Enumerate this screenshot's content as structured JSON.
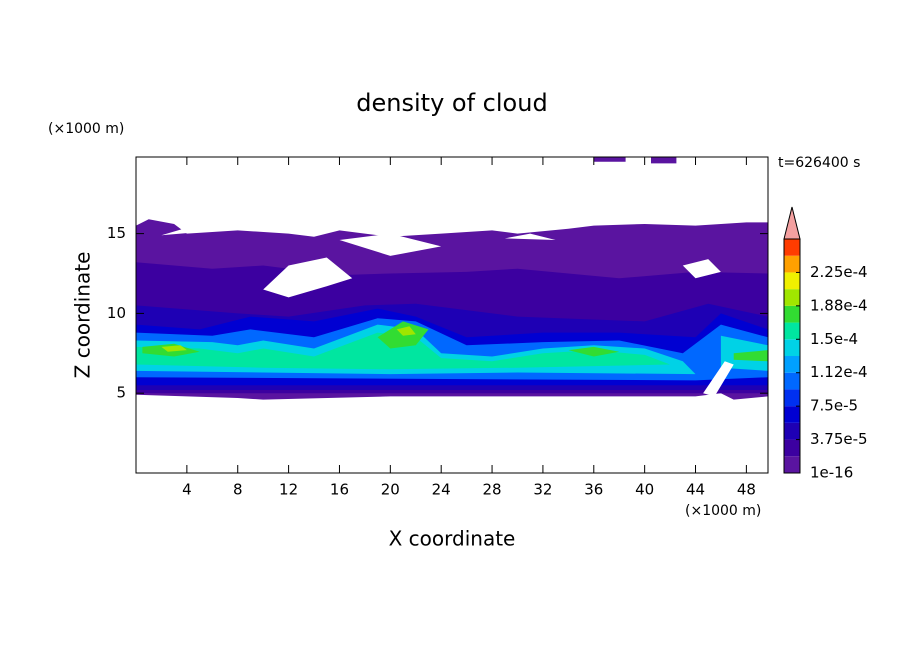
{
  "chart_data": {
    "type": "contour",
    "title": "density of cloud",
    "x_label": "X coordinate",
    "y_label": "Z coordinate",
    "x_unit": "(×1000 m)",
    "y_unit": "(×1000 m)",
    "time_label": "t=626400 s",
    "xlim": [
      0,
      49.7
    ],
    "ylim": [
      0,
      19.8
    ],
    "xticks": [
      4,
      8,
      12,
      16,
      20,
      24,
      28,
      32,
      36,
      40,
      44,
      48
    ],
    "yticks": [
      5,
      10,
      15
    ],
    "levels": [
      0,
      1.875e-05,
      3.75e-05,
      5.625e-05,
      7.5e-05,
      9.375e-05,
      0.0001125,
      0.00013125,
      0.00015,
      0.00016875,
      0.0001875,
      0.00020625,
      0.000225,
      0.00024375
    ],
    "colors": [
      "#5a14a0",
      "#3c00a0",
      "#1e00b4",
      "#0000d2",
      "#0030f0",
      "#0068ff",
      "#00a0ff",
      "#00d2e6",
      "#00e6a0",
      "#32dc32",
      "#a0e600",
      "#f0f000",
      "#ffa000",
      "#ff3c00"
    ],
    "clim": [
      0,
      0.0002625
    ],
    "over_color": "#f4a0a0",
    "colorbar_ticks": [
      {
        "value": 1e-16,
        "label": "1e-16"
      },
      {
        "value": 3.75e-05,
        "label": "3.75e-5"
      },
      {
        "value": 7.5e-05,
        "label": "7.5e-5"
      },
      {
        "value": 0.0001125,
        "label": "1.12e-4"
      },
      {
        "value": 0.00015,
        "label": "1.5e-4"
      },
      {
        "value": 0.0001875,
        "label": "1.88e-4"
      },
      {
        "value": 0.000225,
        "label": "2.25e-4"
      }
    ]
  }
}
